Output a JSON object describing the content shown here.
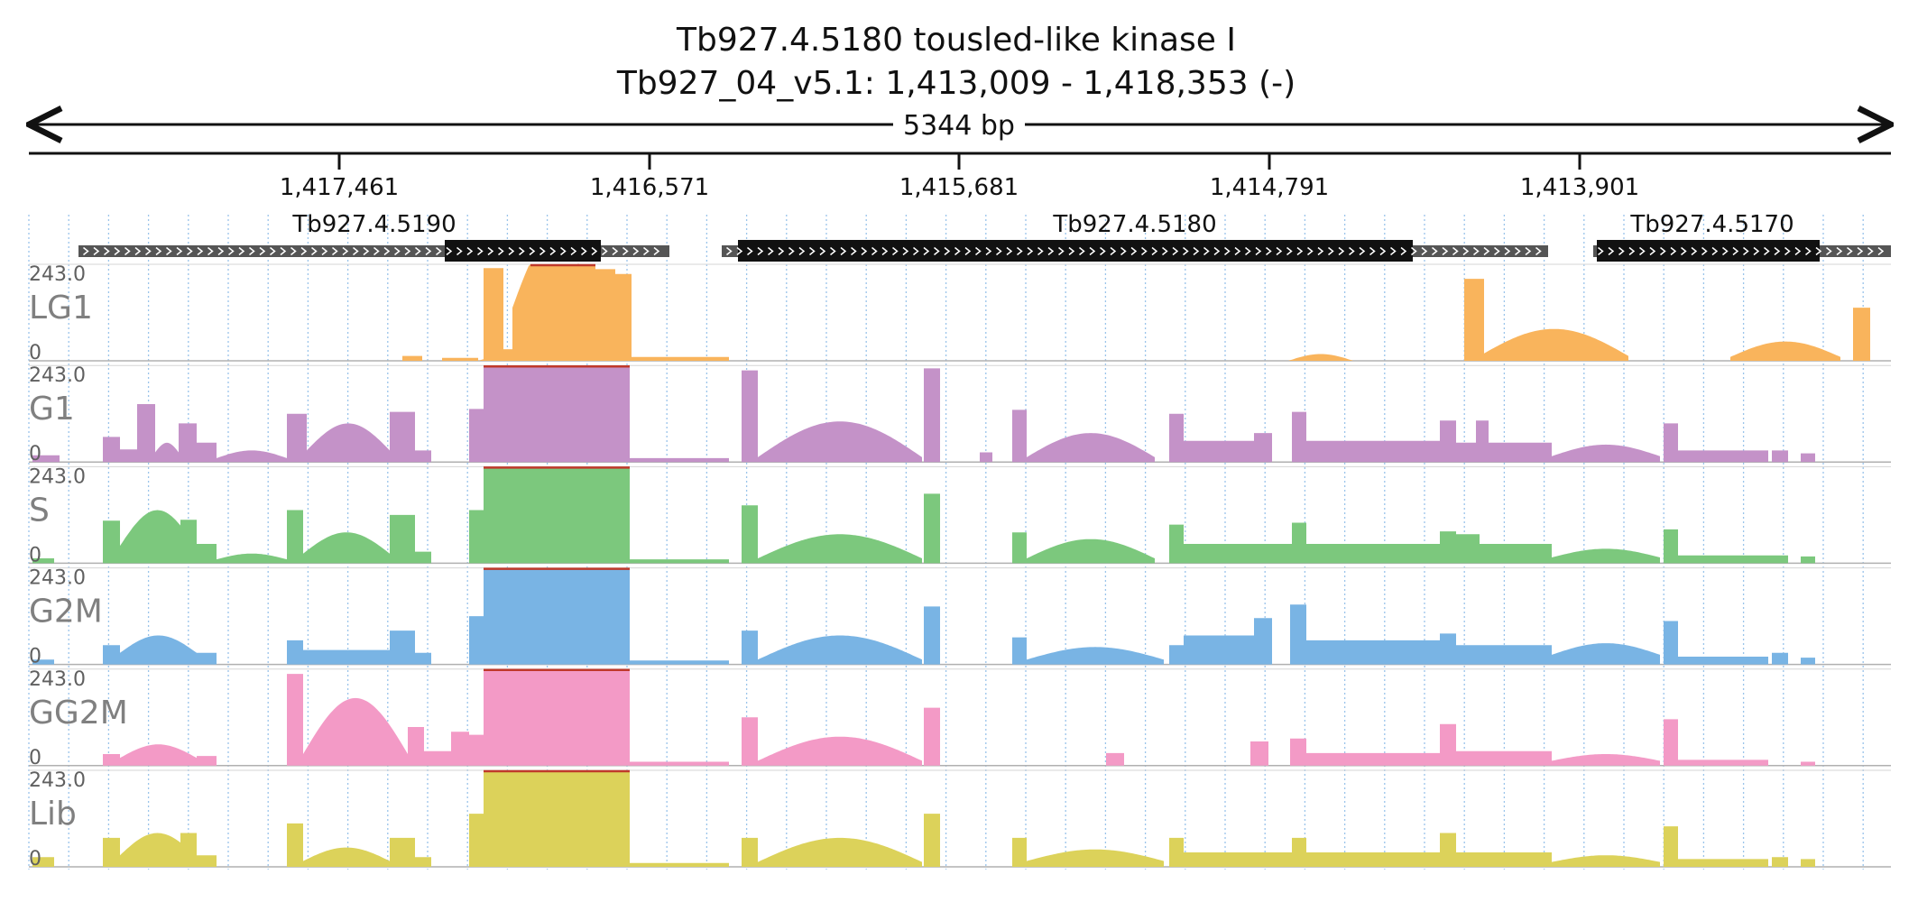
{
  "header": {
    "title_line1": "Tb927.4.5180  tousled-like kinase I",
    "title_line2": "Tb927_04_v5.1: 1,413,009 - 1,418,353 (-)",
    "span_label": "5344 bp"
  },
  "ruler": {
    "ticks": [
      "1,417,461",
      "1,416,571",
      "1,415,681",
      "1,414,791",
      "1,413,901"
    ]
  },
  "genes": [
    {
      "name": "Tb927.4.5190"
    },
    {
      "name": "Tb927.4.5180"
    },
    {
      "name": "Tb927.4.5170"
    }
  ],
  "tracks": [
    {
      "name": "LG1",
      "max_label": "243.0",
      "min_label": "0",
      "color": "#f9b45c"
    },
    {
      "name": "G1",
      "max_label": "243.0",
      "min_label": "0",
      "color": "#c492c8"
    },
    {
      "name": "S",
      "max_label": "243.0",
      "min_label": "0",
      "color": "#7cc87d"
    },
    {
      "name": "G2M",
      "max_label": "243.0",
      "min_label": "0",
      "color": "#79b4e4"
    },
    {
      "name": "GG2M",
      "max_label": "243.0",
      "min_label": "0",
      "color": "#f39ac6"
    },
    {
      "name": "Lib",
      "max_label": "243.0",
      "min_label": "0",
      "color": "#dcd25a"
    }
  ],
  "colors": {
    "utr": "#555555",
    "cds": "#111111",
    "grid": "#9ac4ea",
    "clip": "#c0392b",
    "label_gray": "#808080"
  }
}
